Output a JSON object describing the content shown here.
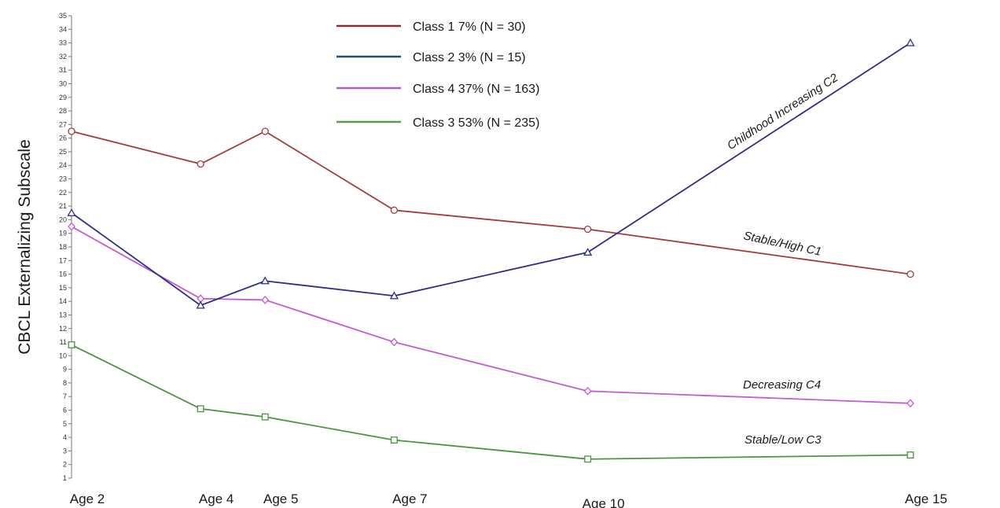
{
  "chart_data": {
    "type": "line",
    "title": "",
    "xlabel": "",
    "ylabel": "CBCL Externalizing Subscale",
    "x": [
      "Age 2",
      "Age 4",
      "Age 5",
      "Age 7",
      "Age 10",
      "Age 15"
    ],
    "x_positions_years": [
      2,
      4,
      5,
      7,
      10,
      15
    ],
    "ylim": [
      1,
      35
    ],
    "yticks": [
      1,
      2,
      3,
      4,
      5,
      6,
      7,
      8,
      9,
      10,
      11,
      12,
      13,
      14,
      15,
      16,
      17,
      18,
      19,
      20,
      21,
      22,
      23,
      24,
      25,
      26,
      27,
      28,
      29,
      30,
      31,
      32,
      33,
      34,
      35
    ],
    "grid": false,
    "legend_position": "top-center",
    "series": [
      {
        "name": "Class 1 7% (N = 30)",
        "color": "#a33d3a",
        "marker": "circle",
        "values": [
          26.5,
          24.1,
          26.5,
          20.7,
          19.3,
          16.0
        ]
      },
      {
        "name": "Class 2 3% (N = 15)",
        "color": "#2e2e86",
        "marker": "triangle",
        "values": [
          20.5,
          13.7,
          15.5,
          14.4,
          17.6,
          33.0
        ]
      },
      {
        "name": "Class 4 37% (N = 163)",
        "color": "#c35bd2",
        "marker": "diamond",
        "values": [
          19.5,
          14.2,
          14.1,
          11.0,
          7.4,
          6.5
        ]
      },
      {
        "name": "Class 3 53% (N = 235)",
        "color": "#4e9344",
        "marker": "square",
        "values": [
          10.8,
          6.1,
          5.5,
          3.8,
          2.4,
          2.7
        ]
      }
    ],
    "legend_line_colors": [
      "#8b2e2e",
      "#1f4f6e",
      "#b35ccc",
      "#5a9a4e"
    ],
    "annotations": [
      {
        "text": "Childhood Increasing    C2",
        "series": "Class 2 3% (N = 15)"
      },
      {
        "text": "Stable/High    C1",
        "series": "Class 1 7% (N = 30)"
      },
      {
        "text": "Decreasing    C4",
        "series": "Class 4 37% (N = 163)"
      },
      {
        "text": "Stable/Low    C3",
        "series": "Class 3 53% (N = 235)"
      }
    ]
  }
}
